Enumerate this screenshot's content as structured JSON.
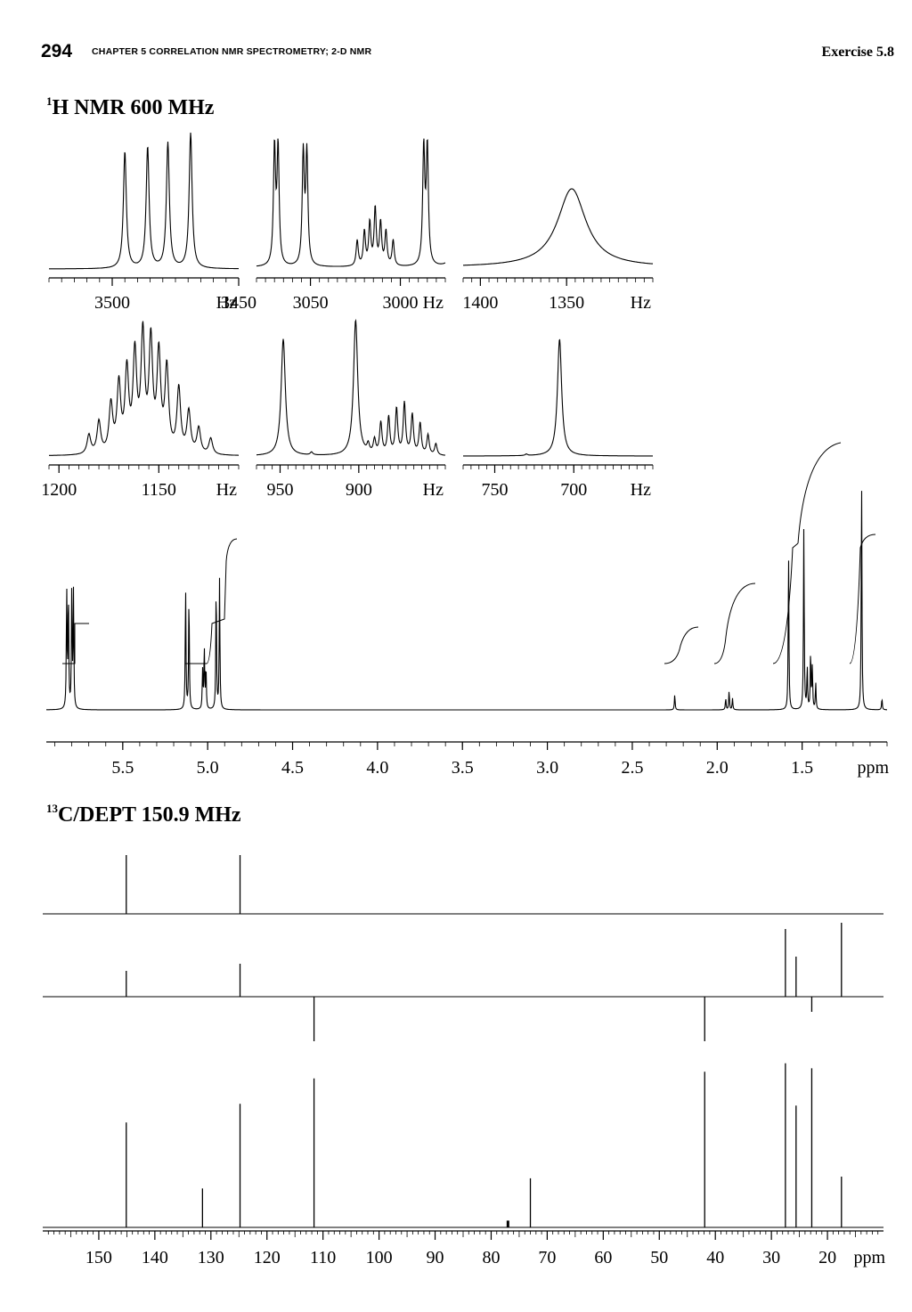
{
  "header": {
    "page_number": "294",
    "chapter": "CHAPTER 5   CORRELATION NMR SPECTROMETRY; 2-D NMR",
    "exercise": "Exercise 5.8"
  },
  "h_title": {
    "sup": "1",
    "text": "H NMR 600 MHz"
  },
  "c_title": {
    "sup": "13",
    "text": "C/DEPT 150.9 MHz"
  },
  "chart_data": [
    {
      "type": "line",
      "id": "inset-1",
      "title": "",
      "xunit": "Hz",
      "xlim": [
        3525,
        3450
      ],
      "ticks": [
        "3500",
        "3450"
      ],
      "tick_values": [
        3500,
        3450
      ],
      "peaks": [
        {
          "x": 3495,
          "h": 0.82
        },
        {
          "x": 3486,
          "h": 0.85
        },
        {
          "x": 3478,
          "h": 0.88
        },
        {
          "x": 3469,
          "h": 0.95
        }
      ]
    },
    {
      "type": "line",
      "id": "inset-2",
      "title": "",
      "xunit": "Hz",
      "xlim": [
        3080,
        2975
      ],
      "ticks": [
        "3050",
        "3000"
      ],
      "tick_values": [
        3050,
        3000
      ],
      "peaks": [
        {
          "x": 3070,
          "h": 0.82
        },
        {
          "x": 3068,
          "h": 0.82
        },
        {
          "x": 3054,
          "h": 0.78
        },
        {
          "x": 3052,
          "h": 0.78
        },
        {
          "x": 3024,
          "h": 0.18
        },
        {
          "x": 3020,
          "h": 0.24
        },
        {
          "x": 3017,
          "h": 0.3
        },
        {
          "x": 3014,
          "h": 0.4
        },
        {
          "x": 3011,
          "h": 0.3
        },
        {
          "x": 3008,
          "h": 0.24
        },
        {
          "x": 3004,
          "h": 0.18
        },
        {
          "x": 2987,
          "h": 0.82
        },
        {
          "x": 2985,
          "h": 0.82
        },
        {
          "x": 2970,
          "h": 0.82
        },
        {
          "x": 2968,
          "h": 0.82
        }
      ]
    },
    {
      "type": "line",
      "id": "inset-3",
      "title": "",
      "xunit": "Hz",
      "xlim": [
        1410,
        1300
      ],
      "ticks": [
        "1400",
        "1350"
      ],
      "tick_values": [
        1400,
        1350
      ],
      "peaks": [
        {
          "x": 1347,
          "h": 0.55,
          "w": 10
        }
      ]
    },
    {
      "type": "line",
      "id": "inset-4",
      "title": "",
      "xunit": "Hz",
      "xlim": [
        1205,
        1110
      ],
      "ticks": [
        "1200",
        "1150"
      ],
      "tick_values": [
        1200,
        1150
      ],
      "peaks": [
        {
          "x": 1185,
          "h": 0.12
        },
        {
          "x": 1180,
          "h": 0.2
        },
        {
          "x": 1174,
          "h": 0.3
        },
        {
          "x": 1170,
          "h": 0.42
        },
        {
          "x": 1166,
          "h": 0.5
        },
        {
          "x": 1162,
          "h": 0.6
        },
        {
          "x": 1158,
          "h": 0.72
        },
        {
          "x": 1154,
          "h": 0.68
        },
        {
          "x": 1150,
          "h": 0.6
        },
        {
          "x": 1146,
          "h": 0.52
        },
        {
          "x": 1140,
          "h": 0.4
        },
        {
          "x": 1135,
          "h": 0.26
        },
        {
          "x": 1130,
          "h": 0.16
        },
        {
          "x": 1124,
          "h": 0.1
        }
      ]
    },
    {
      "type": "line",
      "id": "inset-5",
      "title": "",
      "xunit": "Hz",
      "xlim": [
        965,
        845
      ],
      "ticks": [
        "950",
        "900"
      ],
      "tick_values": [
        950,
        900
      ],
      "peaks": [
        {
          "x": 948,
          "h": 0.82,
          "w": 1.6
        },
        {
          "x": 930,
          "h": 0.02
        },
        {
          "x": 902,
          "h": 0.95,
          "w": 1.6
        },
        {
          "x": 894,
          "h": 0.06
        },
        {
          "x": 890,
          "h": 0.1
        },
        {
          "x": 886,
          "h": 0.22
        },
        {
          "x": 881,
          "h": 0.26
        },
        {
          "x": 876,
          "h": 0.32
        },
        {
          "x": 871,
          "h": 0.36
        },
        {
          "x": 866,
          "h": 0.28
        },
        {
          "x": 861,
          "h": 0.22
        },
        {
          "x": 856,
          "h": 0.14
        },
        {
          "x": 851,
          "h": 0.08
        }
      ]
    },
    {
      "type": "line",
      "id": "inset-6",
      "title": "",
      "xunit": "Hz",
      "xlim": [
        770,
        650
      ],
      "ticks": [
        "750",
        "700"
      ],
      "tick_values": [
        750,
        700
      ],
      "peaks": [
        {
          "x": 709,
          "h": 0.82,
          "w": 1.6
        },
        {
          "x": 730,
          "h": 0.01
        }
      ]
    },
    {
      "type": "line",
      "id": "h-spectrum",
      "title": "",
      "xlabel": "ppm",
      "xlim": [
        5.95,
        1.0
      ],
      "ticks": [
        "5.5",
        "5.0",
        "4.5",
        "4.0",
        "3.5",
        "3.0",
        "2.5",
        "2.0",
        "1.5"
      ],
      "tick_values": [
        5.5,
        5.0,
        4.5,
        4.0,
        3.5,
        3.0,
        2.5,
        2.0,
        1.5
      ],
      "peaks": [
        {
          "ppm": 5.83,
          "h": 0.62
        },
        {
          "ppm": 5.82,
          "h": 0.6
        },
        {
          "ppm": 5.8,
          "h": 0.62
        },
        {
          "ppm": 5.79,
          "h": 0.6
        },
        {
          "ppm": 5.13,
          "h": 0.64
        },
        {
          "ppm": 5.11,
          "h": 0.6
        },
        {
          "ppm": 5.03,
          "h": 0.2
        },
        {
          "ppm": 5.02,
          "h": 0.32
        },
        {
          "ppm": 5.01,
          "h": 0.22
        },
        {
          "ppm": 4.95,
          "h": 0.66
        },
        {
          "ppm": 4.93,
          "h": 0.68
        },
        {
          "ppm": 2.25,
          "h": 0.08
        },
        {
          "ppm": 1.95,
          "h": 0.06
        },
        {
          "ppm": 1.93,
          "h": 0.1
        },
        {
          "ppm": 1.91,
          "h": 0.06
        },
        {
          "ppm": 1.58,
          "h": 0.82
        },
        {
          "ppm": 1.49,
          "h": 0.95
        },
        {
          "ppm": 1.47,
          "h": 0.22
        },
        {
          "ppm": 1.45,
          "h": 0.3
        },
        {
          "ppm": 1.44,
          "h": 0.22
        },
        {
          "ppm": 1.42,
          "h": 0.14
        },
        {
          "ppm": 1.15,
          "h": 1.2
        },
        {
          "ppm": 1.03,
          "h": 0.06
        }
      ]
    },
    {
      "type": "line",
      "id": "dept-90",
      "title": "",
      "xlim": [
        160,
        10
      ],
      "peaks": [
        {
          "ppm": 145.1,
          "h": 1.0
        },
        {
          "ppm": 124.8,
          "h": 1.0
        }
      ]
    },
    {
      "type": "line",
      "id": "dept-135",
      "title": "",
      "xlim": [
        160,
        10
      ],
      "peaks": [
        {
          "ppm": 145.1,
          "h": 0.29
        },
        {
          "ppm": 124.8,
          "h": 0.37
        },
        {
          "ppm": 111.6,
          "h": -0.5
        },
        {
          "ppm": 41.9,
          "h": -0.5
        },
        {
          "ppm": 27.5,
          "h": 0.76
        },
        {
          "ppm": 25.6,
          "h": 0.45
        },
        {
          "ppm": 22.8,
          "h": -0.17
        },
        {
          "ppm": 17.5,
          "h": 0.83
        }
      ]
    },
    {
      "type": "line",
      "id": "c13-broadband",
      "title": "",
      "xlabel": "ppm",
      "xlim": [
        160,
        10
      ],
      "ticks": [
        "150",
        "140",
        "130",
        "120",
        "110",
        "100",
        "90",
        "80",
        "70",
        "60",
        "50",
        "40",
        "30",
        "20"
      ],
      "tick_values": [
        150,
        140,
        130,
        120,
        110,
        100,
        90,
        80,
        70,
        60,
        50,
        40,
        30,
        20
      ],
      "peaks": [
        {
          "ppm": 145.1,
          "h": 0.62
        },
        {
          "ppm": 131.5,
          "h": 0.23
        },
        {
          "ppm": 124.8,
          "h": 0.73
        },
        {
          "ppm": 111.6,
          "h": 0.88
        },
        {
          "ppm": 77.0,
          "h": 0.04
        },
        {
          "ppm": 73.0,
          "h": 0.29
        },
        {
          "ppm": 41.9,
          "h": 0.92
        },
        {
          "ppm": 27.5,
          "h": 0.97
        },
        {
          "ppm": 25.6,
          "h": 0.72
        },
        {
          "ppm": 22.8,
          "h": 0.94
        },
        {
          "ppm": 17.5,
          "h": 0.3
        }
      ]
    }
  ]
}
